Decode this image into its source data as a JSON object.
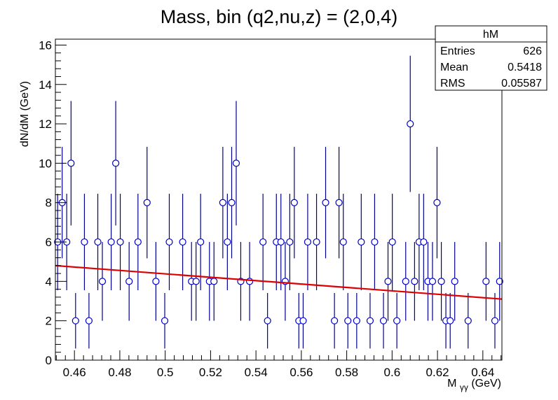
{
  "chart_data": {
    "type": "scatter",
    "title": "Mass, bin (q2,nu,z) = (2,0,4)",
    "xlabel": "M",
    "xlabel_sub": "γγ",
    "xlabel_unit": " (GeV)",
    "ylabel": "dN/dM (GeV)",
    "xlim": [
      0.4516,
      0.6484
    ],
    "ylim": [
      0,
      16.3
    ],
    "x_ticks": [
      0.46,
      0.48,
      0.5,
      0.52,
      0.54,
      0.56,
      0.58,
      0.6,
      0.62,
      0.64
    ],
    "x_tick_labels": [
      "0.46",
      "0.48",
      "0.5",
      "0.52",
      "0.54",
      "0.56",
      "0.58",
      "0.6",
      "0.62",
      "0.64"
    ],
    "y_ticks": [
      0,
      2,
      4,
      6,
      8,
      10,
      12,
      14,
      16
    ],
    "y_tick_labels": [
      "0",
      "2",
      "4",
      "6",
      "8",
      "10",
      "12",
      "14",
      "16"
    ],
    "series": [
      {
        "x": [
          0.4526,
          0.4546,
          0.4566,
          0.4585,
          0.4605,
          0.4644,
          0.4664,
          0.4703,
          0.4723,
          0.4762,
          0.4782,
          0.4802,
          0.4841,
          0.488,
          0.492,
          0.4959,
          0.4998,
          0.5018,
          0.5077,
          0.5116,
          0.5136,
          0.5156,
          0.5195,
          0.5215,
          0.5254,
          0.5274,
          0.5293,
          0.5313,
          0.5333,
          0.5372,
          0.5431,
          0.5451,
          0.549,
          0.551,
          0.5529,
          0.5549,
          0.5569,
          0.5589,
          0.5608,
          0.5628,
          0.5667,
          0.5707,
          0.5746,
          0.5766,
          0.5785,
          0.5805,
          0.5844,
          0.5864,
          0.5903,
          0.5923,
          0.5962,
          0.5982,
          0.6001,
          0.6021,
          0.606,
          0.608,
          0.6099,
          0.6119,
          0.6139,
          0.6158,
          0.6178,
          0.6198,
          0.6217,
          0.6237,
          0.6256,
          0.6276,
          0.6335,
          0.6414,
          0.6453,
          0.6474
        ],
        "y": [
          6,
          8,
          6,
          10,
          2,
          6,
          2,
          6,
          4,
          6,
          10,
          6,
          4,
          6,
          8,
          4,
          2,
          6,
          6,
          4,
          4,
          6,
          4,
          4,
          8,
          6,
          8,
          10,
          4,
          4,
          6,
          2,
          6,
          6,
          4,
          6,
          8,
          2,
          2,
          6,
          6,
          8,
          2,
          8,
          6,
          2,
          2,
          6,
          2,
          6,
          2,
          4,
          6,
          2,
          4,
          12,
          4,
          6,
          6,
          4,
          4,
          8,
          4,
          2,
          2,
          4,
          2,
          4,
          2,
          4
        ],
        "err_y": [
          2.45,
          2.83,
          2.45,
          3.16,
          1.41,
          2.45,
          1.41,
          2.45,
          2.0,
          2.45,
          3.16,
          2.45,
          2.0,
          2.45,
          2.83,
          2.0,
          1.41,
          2.45,
          2.45,
          2.0,
          2.0,
          2.45,
          2.0,
          2.0,
          2.83,
          2.45,
          2.83,
          3.16,
          2.0,
          2.0,
          2.45,
          1.41,
          2.45,
          2.45,
          2.0,
          2.45,
          2.83,
          1.41,
          1.41,
          2.45,
          2.45,
          2.83,
          1.41,
          2.83,
          2.45,
          1.41,
          1.41,
          2.45,
          1.41,
          2.45,
          1.41,
          2.0,
          2.45,
          1.41,
          2.0,
          3.46,
          2.0,
          2.45,
          2.45,
          2.0,
          2.0,
          2.83,
          2.0,
          1.41,
          1.41,
          2.0,
          1.41,
          2.0,
          1.41,
          2.0
        ]
      }
    ],
    "fit": {
      "x": [
        0.4516,
        0.6484
      ],
      "y": [
        4.8,
        3.1
      ]
    },
    "grid": false,
    "legend_placement": "top-right"
  },
  "stats_box": {
    "title": "hM",
    "rows": [
      {
        "label": "Entries",
        "value": "626"
      },
      {
        "label": "Mean",
        "value": "0.5418"
      },
      {
        "label": "RMS",
        "value": "0.05587"
      }
    ]
  },
  "colors": {
    "marker": "#0000cc",
    "errorbar": "#00008b",
    "fit_line": "#dd0000",
    "axis": "#000000"
  }
}
